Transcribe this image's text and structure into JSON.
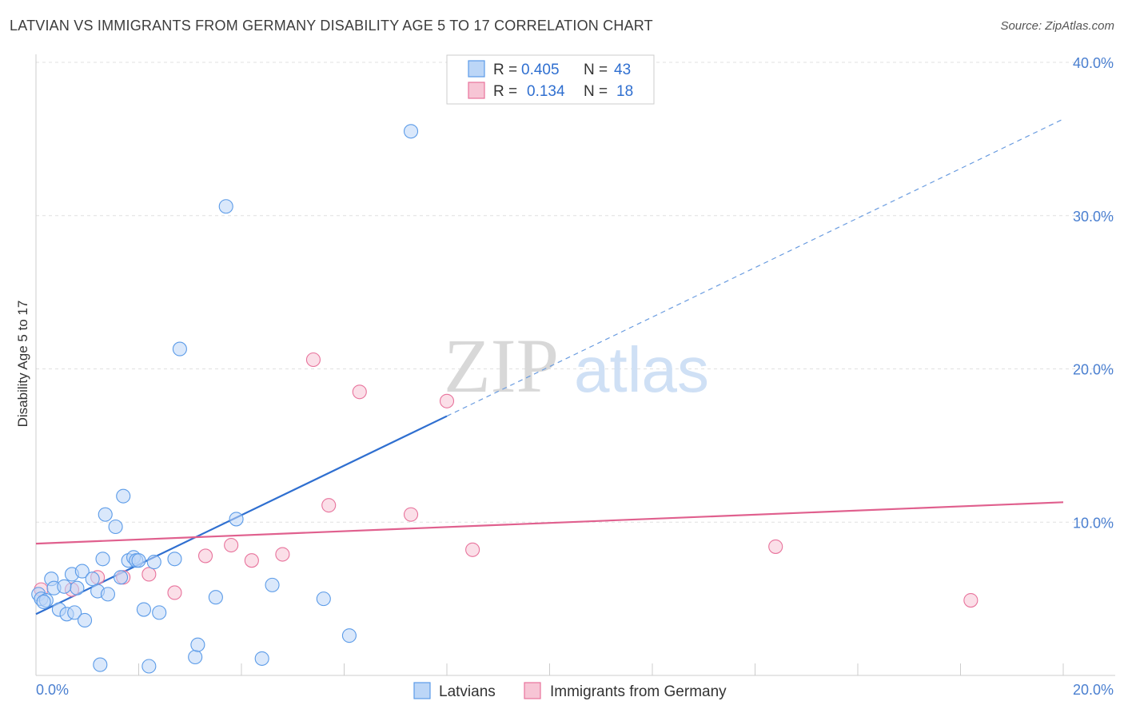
{
  "header": {
    "title": "LATVIAN VS IMMIGRANTS FROM GERMANY DISABILITY AGE 5 TO 17 CORRELATION CHART",
    "source": "Source: ZipAtlas.com"
  },
  "watermark": {
    "zip": "ZIP",
    "atlas": "atlas"
  },
  "legend": {
    "rows": [
      {
        "r_label": "R =",
        "r_value": "0.405",
        "n_label": "N =",
        "n_value": "43"
      },
      {
        "r_label": "R =",
        "r_value": "0.134",
        "n_label": "N =",
        "n_value": "18"
      }
    ]
  },
  "bottom_legend": {
    "series1": "Latvians",
    "series2": "Immigrants from Germany"
  },
  "chart_data": {
    "type": "scatter",
    "title": "LATVIAN VS IMMIGRANTS FROM GERMANY DISABILITY AGE 5 TO 17 CORRELATION CHART",
    "xlabel": "",
    "ylabel": "Disability Age 5 to 17",
    "xlim": [
      0,
      20
    ],
    "ylim": [
      0,
      40
    ],
    "x_ticks": [
      "0.0%",
      "20.0%"
    ],
    "y_ticks": [
      {
        "value": 10,
        "label": "10.0%"
      },
      {
        "value": 20,
        "label": "20.0%"
      },
      {
        "value": 30,
        "label": "30.0%"
      },
      {
        "value": 40,
        "label": "40.0%"
      }
    ],
    "grid": "horizontal dashed",
    "legend_placement": "top-center",
    "series": [
      {
        "name": "Latvians",
        "color": "#5b9be8",
        "fill": "#bcd6f7",
        "r": 0.405,
        "n": 43,
        "points": [
          [
            0.05,
            5.3
          ],
          [
            0.1,
            5.0
          ],
          [
            0.2,
            4.9
          ],
          [
            0.3,
            6.3
          ],
          [
            0.45,
            4.3
          ],
          [
            0.6,
            4.0
          ],
          [
            0.75,
            4.1
          ],
          [
            0.95,
            3.6
          ],
          [
            0.7,
            6.6
          ],
          [
            0.9,
            6.8
          ],
          [
            0.8,
            5.7
          ],
          [
            1.1,
            6.3
          ],
          [
            1.2,
            5.5
          ],
          [
            1.4,
            5.3
          ],
          [
            1.3,
            7.6
          ],
          [
            1.35,
            10.5
          ],
          [
            1.55,
            9.7
          ],
          [
            1.7,
            11.7
          ],
          [
            1.8,
            7.5
          ],
          [
            1.9,
            7.7
          ],
          [
            1.95,
            7.5
          ],
          [
            2.0,
            7.5
          ],
          [
            1.65,
            6.4
          ],
          [
            2.1,
            4.3
          ],
          [
            2.4,
            4.1
          ],
          [
            2.3,
            7.4
          ],
          [
            2.7,
            7.6
          ],
          [
            2.8,
            21.3
          ],
          [
            3.1,
            1.2
          ],
          [
            3.15,
            2.0
          ],
          [
            3.5,
            5.1
          ],
          [
            3.7,
            30.6
          ],
          [
            3.9,
            10.2
          ],
          [
            4.4,
            1.1
          ],
          [
            4.6,
            5.9
          ],
          [
            5.6,
            5.0
          ],
          [
            6.1,
            2.6
          ],
          [
            7.3,
            35.5
          ],
          [
            1.25,
            0.7
          ],
          [
            2.2,
            0.6
          ],
          [
            0.15,
            4.8
          ],
          [
            0.35,
            5.7
          ],
          [
            0.55,
            5.8
          ]
        ],
        "trend": {
          "x0": 0,
          "y0": 4.0,
          "x_solid_end": 8.0,
          "x1": 20,
          "y1": 36.3
        }
      },
      {
        "name": "Immigrants from Germany",
        "color": "#e8739c",
        "fill": "#f7c5d5",
        "r": 0.134,
        "n": 18,
        "points": [
          [
            0.1,
            5.6
          ],
          [
            0.7,
            5.6
          ],
          [
            1.2,
            6.4
          ],
          [
            1.7,
            6.4
          ],
          [
            2.2,
            6.6
          ],
          [
            2.7,
            5.4
          ],
          [
            3.3,
            7.8
          ],
          [
            3.8,
            8.5
          ],
          [
            4.2,
            7.5
          ],
          [
            4.8,
            7.9
          ],
          [
            5.4,
            20.6
          ],
          [
            5.7,
            11.1
          ],
          [
            6.3,
            18.5
          ],
          [
            7.3,
            10.5
          ],
          [
            8.0,
            17.9
          ],
          [
            8.5,
            8.2
          ],
          [
            14.4,
            8.4
          ],
          [
            18.2,
            4.9
          ]
        ],
        "trend": {
          "x0": 0,
          "y0": 8.6,
          "x1": 20,
          "y1": 11.3
        }
      }
    ]
  }
}
